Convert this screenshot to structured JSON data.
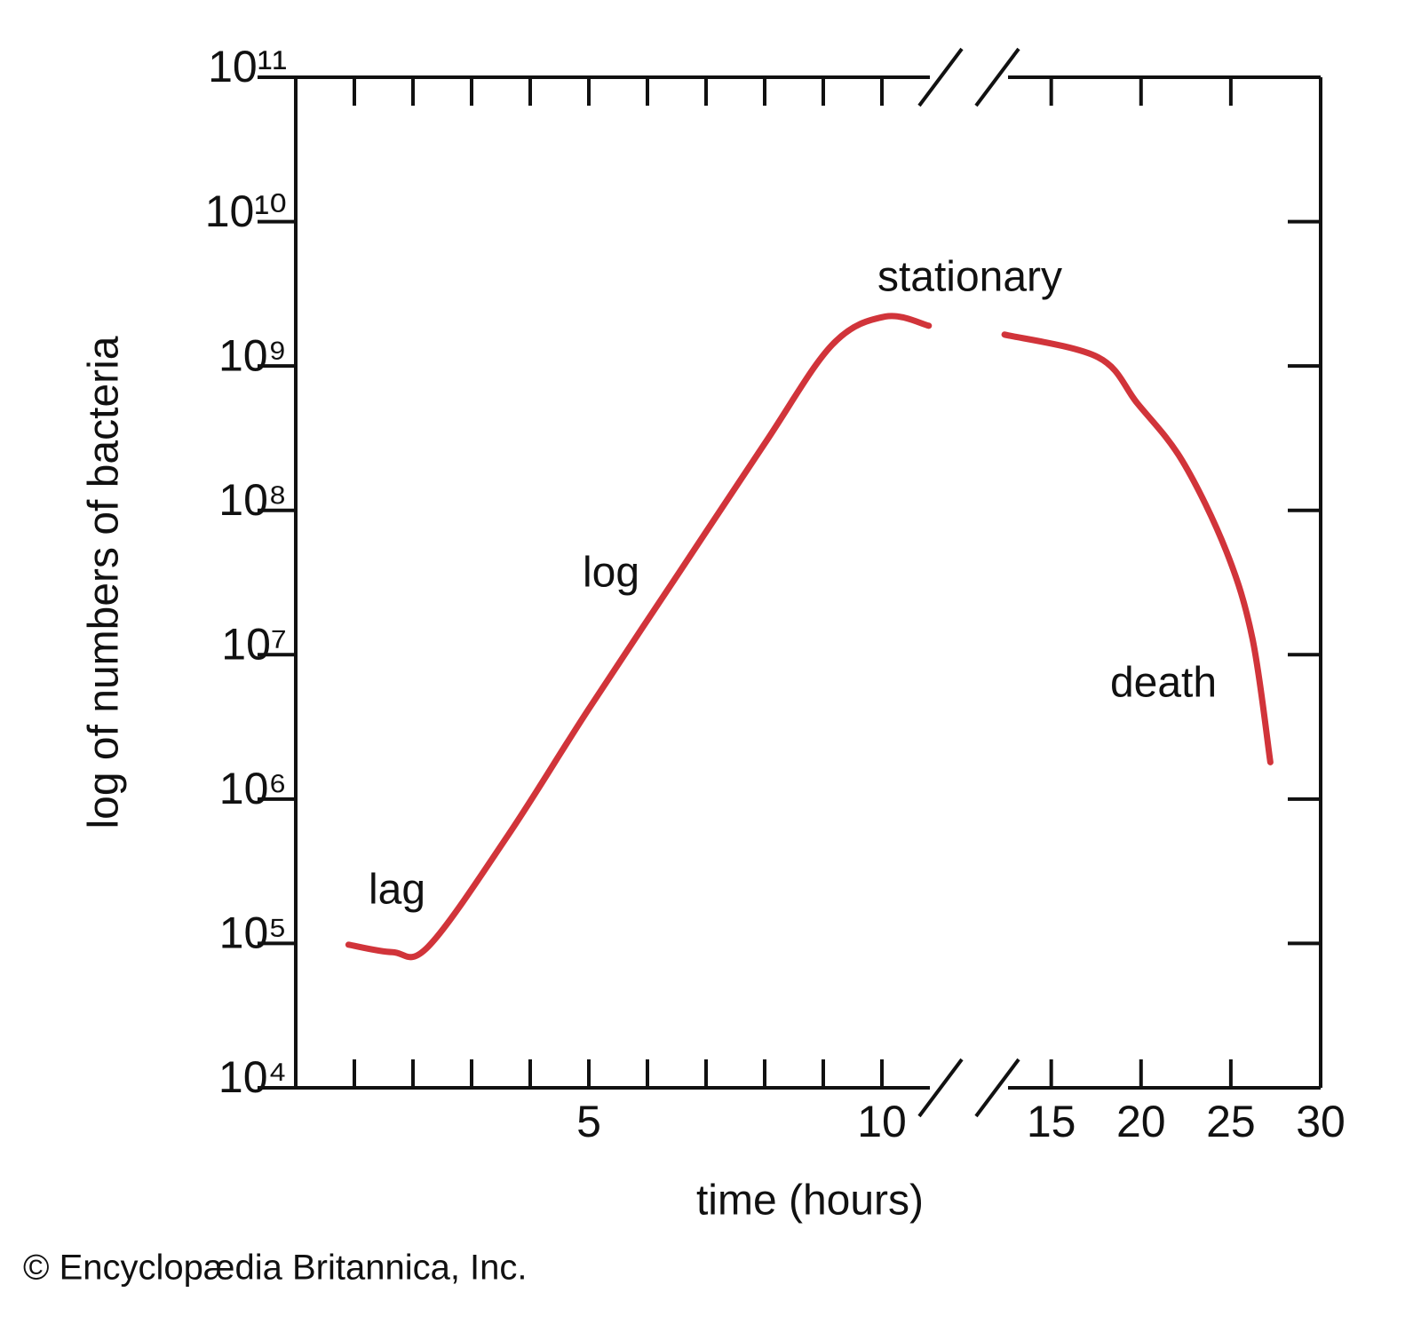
{
  "chart_data": {
    "type": "line",
    "x_label": "time (hours)",
    "y_label": "log of numbers of bacteria",
    "yscale": "log",
    "xlim": [
      0,
      30
    ],
    "x_break": [
      11,
      12
    ],
    "ylim": [
      10000,
      100000000000
    ],
    "xticks": [
      5,
      10,
      15,
      20,
      25,
      30
    ],
    "x_minor_ticks": [
      1,
      2,
      3,
      4,
      6,
      7,
      8,
      9
    ],
    "yticks": [
      {
        "value": 10000,
        "label": "10⁴"
      },
      {
        "value": 100000,
        "label": "10⁵"
      },
      {
        "value": 1000000,
        "label": "10⁶"
      },
      {
        "value": 10000000,
        "label": "10⁷"
      },
      {
        "value": 100000000,
        "label": "10⁸"
      },
      {
        "value": 1000000000,
        "label": "10⁹"
      },
      {
        "value": 10000000000,
        "label": "10¹⁰"
      },
      {
        "value": 100000000000,
        "label": "10¹¹"
      }
    ],
    "x": [
      0.9,
      1.65,
      2.26,
      3.62,
      4.98,
      6.5,
      8.0,
      9.15,
      10.06,
      10.8,
      null,
      12.4,
      17.6,
      19.8,
      22.3,
      24.75,
      26.2,
      27.2
    ],
    "series": [
      {
        "color": "#d1343a",
        "values": [
          98000,
          87000,
          95000,
          560000,
          4100000,
          35000000,
          290000000,
          1400000000,
          2200000000,
          1900000000,
          null,
          1650000000,
          1150000000,
          550000000,
          220000000,
          52000000,
          13000000,
          1800000
        ]
      }
    ],
    "annotations": [
      "lag",
      "log",
      "stationary",
      "death"
    ],
    "source": "© Encyclopædia Britannica, Inc."
  }
}
